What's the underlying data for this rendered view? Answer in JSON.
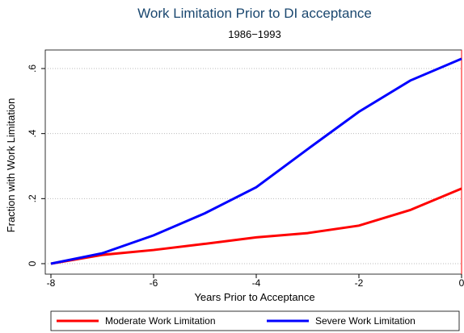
{
  "chart_data": {
    "type": "line",
    "title": "Work Limitation Prior to DI acceptance",
    "subtitle": "1986−1993",
    "x_label": "Years Prior to Acceptance",
    "y_label": "Fraction with Work Limitation",
    "x": [
      -8,
      -7,
      -6,
      -5,
      -4,
      -3,
      -2,
      -1,
      0
    ],
    "series": [
      {
        "name": "Moderate Work Limitation",
        "color": "#ff0000",
        "values": [
          0,
          0.027,
          0.042,
          0.061,
          0.081,
          0.094,
          0.117,
          0.165,
          0.231
        ]
      },
      {
        "name": "Severe Work Limitation",
        "color": "#0000ff",
        "values": [
          0,
          0.032,
          0.087,
          0.155,
          0.235,
          0.352,
          0.467,
          0.563,
          0.63
        ]
      }
    ],
    "xlim": [
      -8,
      0
    ],
    "ylim": [
      0,
      0.6
    ],
    "xticks": [
      -8,
      -6,
      -4,
      -2,
      0
    ],
    "yticks": [
      {
        "value": 0,
        "label": "0"
      },
      {
        "value": 0.2,
        "label": ".2"
      },
      {
        "value": 0.4,
        "label": ".4"
      },
      {
        "value": 0.6,
        "label": ".6"
      }
    ],
    "grid": true,
    "xline": 0,
    "xline_color": "#ff0000",
    "legend": "bottom"
  }
}
